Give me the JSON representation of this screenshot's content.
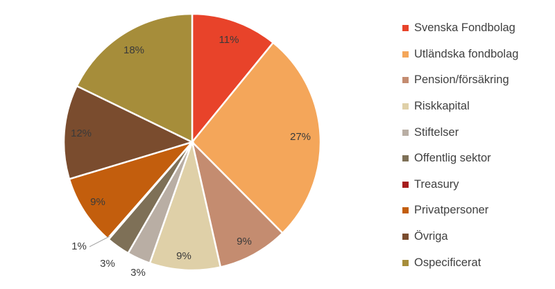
{
  "chart_data": {
    "type": "pie",
    "title": "",
    "series": [
      {
        "categories": [
          "Svenska Fondbolag",
          "Utländska fondbolag",
          "Pension/försäkring",
          "Riskkapital",
          "Stiftelser",
          "Offentlig sektor",
          "Treasury",
          "Privatpersoner",
          "Övriga",
          "Ospecificerat"
        ],
        "values": [
          11,
          27,
          9,
          9,
          3,
          3,
          0,
          9,
          12,
          18
        ],
        "labels": [
          "11%",
          "27%",
          "9%",
          "9%",
          "3%",
          "3%",
          "",
          "9%",
          "12%",
          "18%"
        ]
      }
    ],
    "extra_labels": [
      "1%"
    ],
    "colors": [
      "#e8432a",
      "#f4a65a",
      "#c48c70",
      "#dfd0a8",
      "#b9aea4",
      "#7e7057",
      "#a61c1c",
      "#c35e0d",
      "#7a4c2e",
      "#a68d3a"
    ],
    "legend_position": "right"
  }
}
